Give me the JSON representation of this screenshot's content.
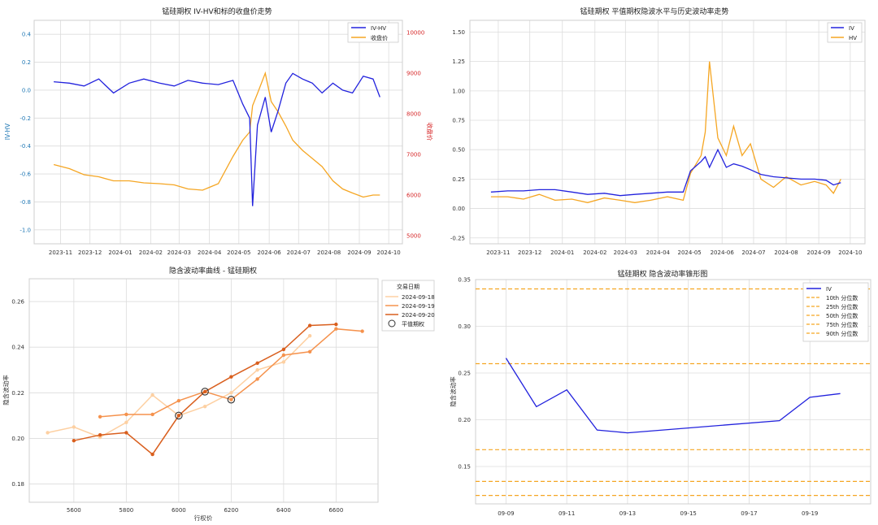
{
  "colors": {
    "iv": "#2222dd",
    "price": "#f5a623",
    "hv": "#f5a623",
    "pct": "#f5a623",
    "d18": "#fdd0a2",
    "d19": "#f5924d",
    "d20": "#d95f1e",
    "ring": "#333333"
  },
  "panel1": {
    "title": "锰硅期权 IV-HV和标的收盘价走势",
    "ylabel_left": "IV-HV",
    "ylabel_right": "收盘价",
    "legend": [
      "IV-HV",
      "收盘价"
    ],
    "xticks": [
      "2023-11",
      "2023-12",
      "2024-01",
      "2024-02",
      "2024-03",
      "2024-04",
      "2024-05",
      "2024-06",
      "2024-07",
      "2024-08",
      "2024-09",
      "2024-10"
    ],
    "yticks_left": [
      "0.4",
      "0.2",
      "0.0",
      "-0.2",
      "-0.4",
      "-0.6",
      "-0.8",
      "-1.0"
    ],
    "yticks_right": [
      "10000",
      "9000",
      "8000",
      "7000",
      "6000",
      "5000"
    ]
  },
  "panel2": {
    "title": "锰硅期权 平值期权隐波水平与历史波动率走势",
    "legend": [
      "IV",
      "HV"
    ],
    "xticks": [
      "2023-11",
      "2023-12",
      "2024-01",
      "2024-02",
      "2024-03",
      "2024-04",
      "2024-05",
      "2024-06",
      "2024-07",
      "2024-08",
      "2024-09",
      "2024-10"
    ],
    "yticks": [
      "1.50",
      "1.25",
      "1.00",
      "0.75",
      "0.50",
      "0.25",
      "0.00",
      "-0.25"
    ]
  },
  "panel3": {
    "title": "隐含波动率曲线 - 锰硅期权",
    "xlabel": "行权价",
    "ylabel": "隐含波动率",
    "legend_title": "交易日期",
    "legend": [
      "2024-09-18",
      "2024-09-19",
      "2024-09-20",
      "平值期权"
    ],
    "xticks": [
      "5600",
      "5800",
      "6000",
      "6200",
      "6400",
      "6600"
    ],
    "yticks": [
      "0.26",
      "0.24",
      "0.22",
      "0.20",
      "0.18"
    ]
  },
  "panel4": {
    "title": "锰硅期权 隐含波动率锥形图",
    "ylabel": "隐含波动率",
    "legend": [
      "IV",
      "10th 分位数",
      "25th 分位数",
      "50th 分位数",
      "75th 分位数",
      "90th 分位数"
    ],
    "xticks": [
      "09-09",
      "09-11",
      "09-13",
      "09-15",
      "09-17",
      "09-19"
    ],
    "yticks": [
      "0.35",
      "0.30",
      "0.25",
      "0.20",
      "0.15"
    ]
  },
  "chart_data": [
    {
      "type": "line",
      "title": "锰硅期权 IV-HV和标的收盘价走势",
      "ylabel": "IV-HV",
      "y2label": "收盘价",
      "ylim": [
        -1.1,
        0.5
      ],
      "y2lim": [
        4800,
        10300
      ],
      "x": [
        "2023-10-25",
        "2023-11-10",
        "2023-11-25",
        "2023-12-10",
        "2023-12-25",
        "2024-01-10",
        "2024-01-25",
        "2024-02-10",
        "2024-02-25",
        "2024-03-10",
        "2024-03-25",
        "2024-04-10",
        "2024-04-25",
        "2024-05-05",
        "2024-05-12",
        "2024-05-15",
        "2024-05-20",
        "2024-05-28",
        "2024-06-03",
        "2024-06-10",
        "2024-06-18",
        "2024-06-25",
        "2024-07-05",
        "2024-07-15",
        "2024-07-25",
        "2024-08-05",
        "2024-08-15",
        "2024-08-25",
        "2024-09-05",
        "2024-09-15",
        "2024-09-22"
      ],
      "series": [
        {
          "name": "IV-HV",
          "axis": "left",
          "values": [
            0.06,
            0.05,
            0.03,
            0.08,
            -0.02,
            0.05,
            0.08,
            0.05,
            0.03,
            0.07,
            0.05,
            0.04,
            0.07,
            -0.1,
            -0.2,
            -0.83,
            -0.25,
            -0.05,
            -0.3,
            -0.15,
            0.05,
            0.12,
            0.08,
            0.05,
            -0.02,
            0.05,
            0.0,
            -0.02,
            0.1,
            0.08,
            -0.05
          ]
        },
        {
          "name": "收盘价",
          "axis": "right",
          "values": [
            6750,
            6650,
            6500,
            6450,
            6350,
            6350,
            6300,
            6280,
            6250,
            6150,
            6120,
            6280,
            6950,
            7350,
            7550,
            8200,
            8500,
            9000,
            8300,
            8050,
            7700,
            7350,
            7100,
            6900,
            6700,
            6350,
            6150,
            6050,
            5950,
            6000,
            6000
          ]
        }
      ]
    },
    {
      "type": "line",
      "title": "锰硅期权 平值期权隐波水平与历史波动率走势",
      "ylim": [
        -0.3,
        1.6
      ],
      "x": [
        "2023-10-25",
        "2023-11-10",
        "2023-11-25",
        "2023-12-10",
        "2023-12-25",
        "2024-01-10",
        "2024-01-25",
        "2024-02-10",
        "2024-02-25",
        "2024-03-10",
        "2024-03-25",
        "2024-04-10",
        "2024-04-25",
        "2024-05-02",
        "2024-05-12",
        "2024-05-16",
        "2024-05-20",
        "2024-05-28",
        "2024-06-05",
        "2024-06-12",
        "2024-06-20",
        "2024-06-28",
        "2024-07-08",
        "2024-07-20",
        "2024-08-01",
        "2024-08-15",
        "2024-08-28",
        "2024-09-08",
        "2024-09-15",
        "2024-09-22"
      ],
      "series": [
        {
          "name": "IV",
          "values": [
            0.14,
            0.15,
            0.15,
            0.16,
            0.16,
            0.14,
            0.12,
            0.13,
            0.11,
            0.12,
            0.13,
            0.14,
            0.14,
            0.32,
            0.4,
            0.44,
            0.35,
            0.5,
            0.35,
            0.38,
            0.36,
            0.33,
            0.29,
            0.27,
            0.26,
            0.25,
            0.25,
            0.24,
            0.2,
            0.22
          ]
        },
        {
          "name": "HV",
          "values": [
            0.1,
            0.1,
            0.08,
            0.12,
            0.07,
            0.08,
            0.05,
            0.09,
            0.07,
            0.05,
            0.07,
            0.1,
            0.07,
            0.3,
            0.45,
            0.65,
            1.25,
            0.6,
            0.45,
            0.7,
            0.45,
            0.55,
            0.25,
            0.18,
            0.27,
            0.2,
            0.23,
            0.2,
            0.13,
            0.25
          ]
        }
      ]
    },
    {
      "type": "line",
      "title": "隐含波动率曲线 - 锰硅期权",
      "xlabel": "行权价",
      "ylabel": "隐含波动率",
      "xlim": [
        5430,
        6760
      ],
      "ylim": [
        0.172,
        0.27
      ],
      "series": [
        {
          "name": "2024-09-18",
          "x": [
            5500,
            5600,
            5700,
            5800,
            5900,
            6000,
            6100,
            6200,
            6300,
            6400,
            6500
          ],
          "values": [
            0.2025,
            0.205,
            0.2005,
            0.207,
            0.219,
            0.21,
            0.214,
            0.22,
            0.23,
            0.2335,
            0.245
          ],
          "atm": null
        },
        {
          "name": "2024-09-19",
          "x": [
            5700,
            5800,
            5900,
            6000,
            6100,
            6200,
            6300,
            6400,
            6500,
            6600,
            6700
          ],
          "values": [
            0.2095,
            0.2105,
            0.2105,
            0.2165,
            0.2205,
            0.217,
            0.226,
            0.2365,
            0.238,
            0.248,
            0.247
          ],
          "atm": [
            6200,
            0.217
          ]
        },
        {
          "name": "2024-09-20",
          "x": [
            5600,
            5700,
            5800,
            5900,
            6000,
            6100,
            6200,
            6300,
            6400,
            6500,
            6600
          ],
          "values": [
            0.199,
            0.2015,
            0.2025,
            0.193,
            0.21,
            0.2205,
            0.227,
            0.233,
            0.239,
            0.2495,
            0.25
          ],
          "atm": [
            6100,
            0.2205
          ]
        }
      ],
      "atm_points": [
        [
          6000,
          0.21
        ],
        [
          6100,
          0.2205
        ],
        [
          6200,
          0.217
        ]
      ]
    },
    {
      "type": "line",
      "title": "锰硅期权 隐含波动率锥形图",
      "ylabel": "隐含波动率",
      "ylim": [
        0.11,
        0.35
      ],
      "x": [
        "2024-09-09",
        "2024-09-10",
        "2024-09-11",
        "2024-09-12",
        "2024-09-13",
        "2024-09-18",
        "2024-09-19",
        "2024-09-20"
      ],
      "series": [
        {
          "name": "IV",
          "values": [
            0.266,
            0.214,
            0.232,
            0.189,
            0.186,
            0.199,
            0.224,
            0.228
          ]
        }
      ],
      "percentiles": [
        {
          "name": "10th 分位数",
          "value": 0.119
        },
        {
          "name": "25th 分位数",
          "value": 0.134
        },
        {
          "name": "50th 分位数",
          "value": 0.168
        },
        {
          "name": "75th 分位数",
          "value": 0.26
        },
        {
          "name": "90th 分位数",
          "value": 0.34
        }
      ]
    }
  ]
}
